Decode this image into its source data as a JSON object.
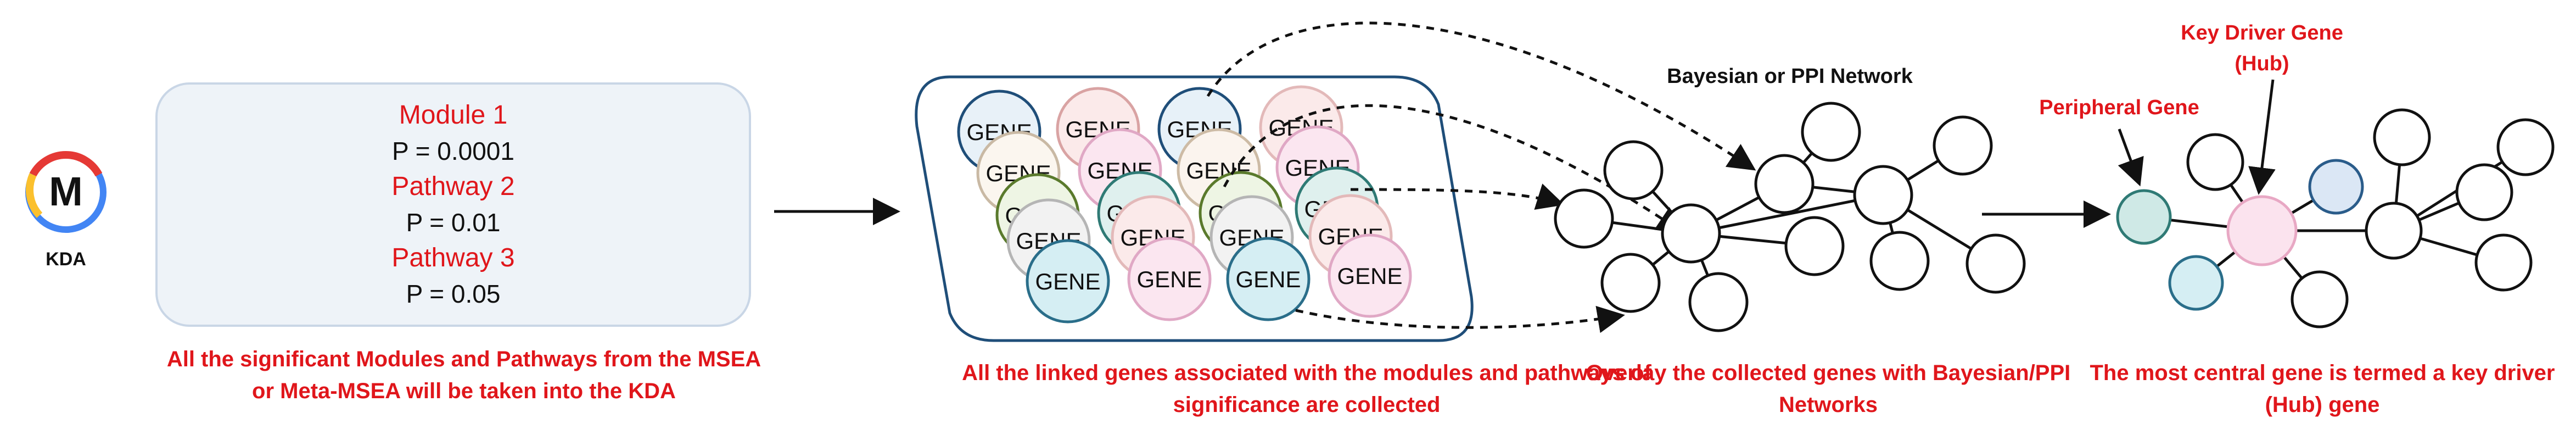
{
  "logo": {
    "letter": "M",
    "label": "KDA",
    "icon": "kda-logo-icon"
  },
  "modules": [
    {
      "name": "Module 1",
      "p": "P = 0.0001"
    },
    {
      "name": "Pathway 2",
      "p": "P = 0.01"
    },
    {
      "name": "Pathway 3",
      "p": "P = 0.05"
    }
  ],
  "captions": {
    "step1": "All the significant Modules and Pathways from the MSEA or Meta-MSEA will be taken into the KDA",
    "step2": "All the linked genes associated with the modules and pathways of significance are collected",
    "step3": "Overlay the collected genes with Bayesian/PPI Networks",
    "step4": "The most central gene is termed a key driver (Hub) gene"
  },
  "genes": {
    "label": "GENE",
    "count": 19
  },
  "network": {
    "label": "Bayesian or PPI  Network"
  },
  "hub_network": {
    "peripheral_label": "Peripheral Gene",
    "key_driver_label_line1": "Key Driver Gene",
    "key_driver_label_line2": "(Hub)"
  },
  "colors": {
    "red_text": "#e0161b",
    "module_box_fill": "#eef3f8",
    "module_box_border": "#c9d6e6",
    "gene_container_border": "#1f4e79",
    "hub_fill": "#fbe3ee",
    "peripheral_fill_teal": "#cfe9e6",
    "peripheral_fill_blue": "#dbe7f5",
    "peripheral_fill_cyan": "#d5eef3"
  }
}
